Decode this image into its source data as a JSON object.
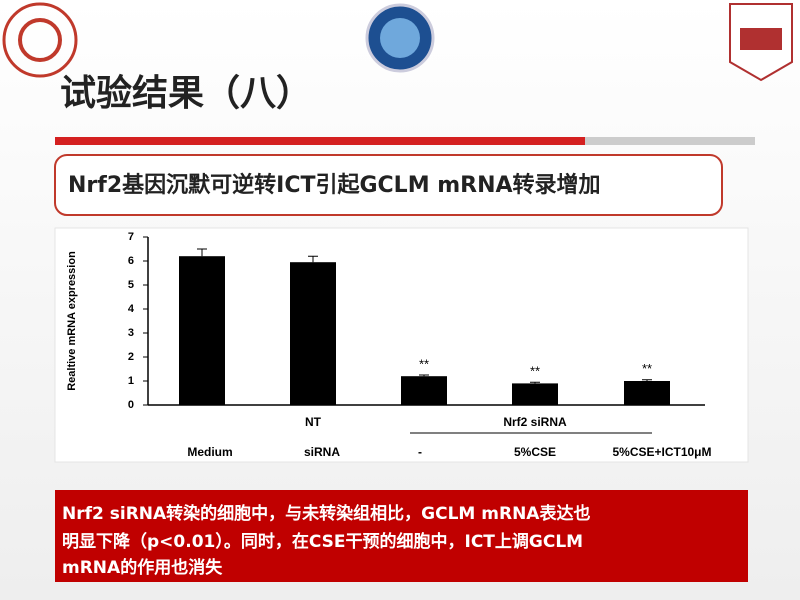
{
  "slide": {
    "title": "试验结果（八）",
    "subtitle": "Nrf2基因沉默可逆转ICT引起GCLM mRNA转录增加",
    "caption": [
      "Nrf2 siRNA转染的细胞中，与未转染组相比，GCLM mRNA表达也",
      "明显下降（p<0.01）。同时，在CSE干预的细胞中，ICT上调GCLM",
      "mRNA的作用也消失"
    ]
  },
  "chart_data": {
    "type": "bar",
    "ylabel": "Realtive mRNA expression",
    "categories": [
      "Medium",
      "siRNA",
      "-",
      "5%CSE",
      "5%CSE+ICT10μM"
    ],
    "groups": [
      "NT",
      "Nrf2 siRNA"
    ],
    "values": [
      6.2,
      5.95,
      1.2,
      0.9,
      1.0
    ],
    "errors": [
      0.3,
      0.25,
      0.05,
      0.05,
      0.05
    ],
    "markers": [
      null,
      null,
      "**",
      "**",
      "**"
    ],
    "color": "#000000",
    "ylim": [
      0,
      7
    ],
    "yticks": [
      0,
      1,
      2,
      3,
      4,
      5,
      6,
      7
    ]
  }
}
